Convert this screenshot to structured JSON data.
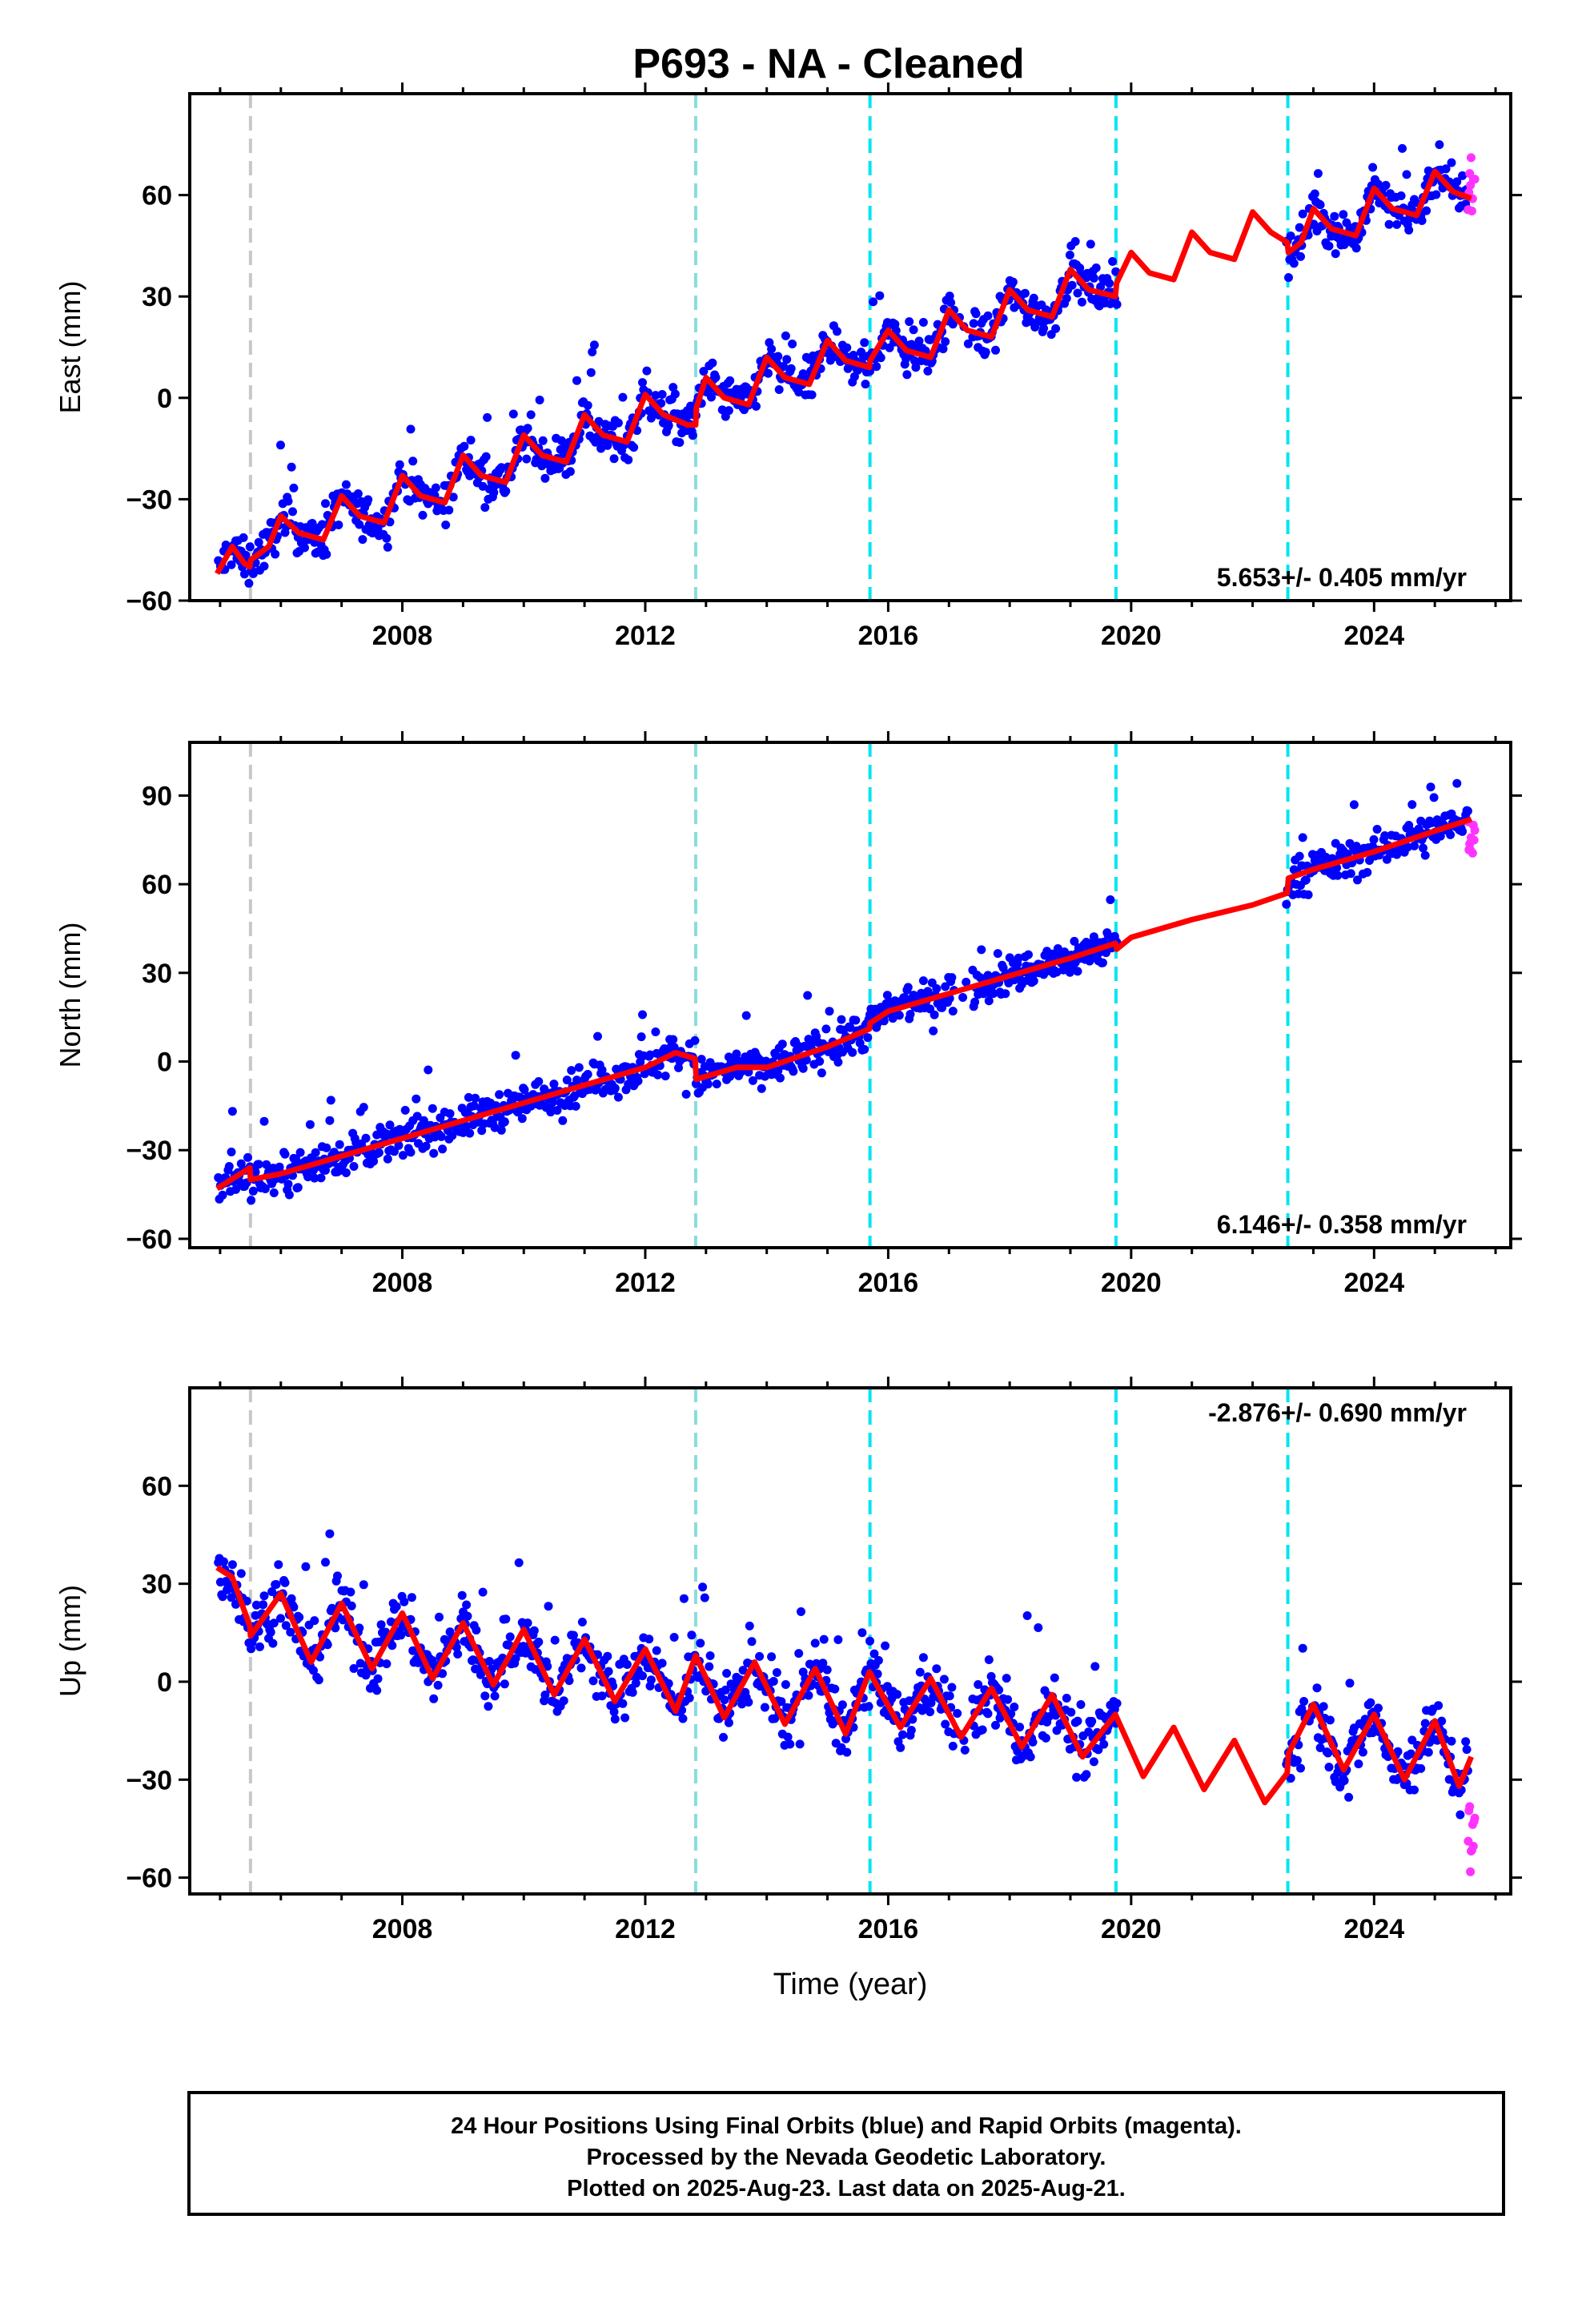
{
  "chart_data": {
    "type": "scatter",
    "title": "P693  - NA - Cleaned",
    "xlabel": "Time (year)",
    "xlim": [
      2004.5,
      2026.25
    ],
    "xticks": [
      2008,
      2012,
      2016,
      2020,
      2024
    ],
    "series_legend": {
      "final": {
        "name": "Final Orbits",
        "color": "#0000ff"
      },
      "rapid": {
        "name": "Rapid Orbits",
        "color": "#ff33ff"
      },
      "model": {
        "color": "#ff0000"
      }
    },
    "event_lines": [
      {
        "x": 2005.5,
        "color": "#c8c8c8"
      },
      {
        "x": 2012.83,
        "color": "#88dddd"
      },
      {
        "x": 2015.7,
        "color": "#00e5f0"
      },
      {
        "x": 2019.75,
        "color": "#00e5f0"
      },
      {
        "x": 2022.58,
        "color": "#00e5f0"
      }
    ],
    "panels": [
      {
        "name": "east",
        "ylabel": "East (mm)",
        "ylim": [
          -60,
          90
        ],
        "yticks": [
          -60,
          -30,
          0,
          30,
          60
        ],
        "rate_label": "5.653+/- 0.405 mm/yr",
        "rate_pos": "bottom-right",
        "model_points": [
          [
            2004.95,
            -52
          ],
          [
            2005.2,
            -44
          ],
          [
            2005.4,
            -49
          ],
          [
            2005.49,
            -50
          ],
          [
            2005.5,
            -48
          ],
          [
            2005.8,
            -44
          ],
          [
            2006.0,
            -35
          ],
          [
            2006.3,
            -40
          ],
          [
            2006.7,
            -42
          ],
          [
            2007.0,
            -29
          ],
          [
            2007.3,
            -35
          ],
          [
            2007.7,
            -37
          ],
          [
            2008.0,
            -23
          ],
          [
            2008.3,
            -29
          ],
          [
            2008.7,
            -31
          ],
          [
            2009.0,
            -17
          ],
          [
            2009.3,
            -23
          ],
          [
            2009.7,
            -25
          ],
          [
            2010.0,
            -11
          ],
          [
            2010.3,
            -17
          ],
          [
            2010.7,
            -19
          ],
          [
            2011.0,
            -5
          ],
          [
            2011.3,
            -11
          ],
          [
            2011.7,
            -13
          ],
          [
            2012.0,
            1
          ],
          [
            2012.3,
            -5
          ],
          [
            2012.7,
            -8
          ],
          [
            2012.83,
            -8
          ],
          [
            2012.84,
            -3
          ],
          [
            2013.0,
            6
          ],
          [
            2013.3,
            0
          ],
          [
            2013.7,
            -2
          ],
          [
            2014.0,
            12
          ],
          [
            2014.3,
            6
          ],
          [
            2014.7,
            4
          ],
          [
            2015.0,
            17
          ],
          [
            2015.3,
            11
          ],
          [
            2015.69,
            9
          ],
          [
            2015.7,
            11
          ],
          [
            2016.0,
            20
          ],
          [
            2016.3,
            14
          ],
          [
            2016.7,
            12
          ],
          [
            2017.0,
            26
          ],
          [
            2017.3,
            20
          ],
          [
            2017.7,
            18
          ],
          [
            2018.0,
            32
          ],
          [
            2018.3,
            26
          ],
          [
            2018.7,
            24
          ],
          [
            2019.0,
            38
          ],
          [
            2019.3,
            32
          ],
          [
            2019.74,
            30
          ],
          [
            2019.76,
            34
          ],
          [
            2020.0,
            43
          ],
          [
            2020.3,
            37
          ],
          [
            2020.7,
            35
          ],
          [
            2021.0,
            49
          ],
          [
            2021.3,
            43
          ],
          [
            2021.7,
            41
          ],
          [
            2022.0,
            55
          ],
          [
            2022.3,
            49
          ],
          [
            2022.57,
            46
          ],
          [
            2022.59,
            43
          ],
          [
            2022.8,
            46
          ],
          [
            2023.0,
            56
          ],
          [
            2023.3,
            50
          ],
          [
            2023.7,
            48
          ],
          [
            2024.0,
            62
          ],
          [
            2024.3,
            56
          ],
          [
            2024.7,
            54
          ],
          [
            2025.0,
            67
          ],
          [
            2025.3,
            61
          ],
          [
            2025.6,
            59
          ]
        ],
        "rapid_range": [
          55,
          72
        ]
      },
      {
        "name": "north",
        "ylabel": "North (mm)",
        "ylim": [
          -63,
          108
        ],
        "yticks": [
          -60,
          -30,
          0,
          30,
          60,
          90
        ],
        "rate_label": "6.146+/- 0.358 mm/yr",
        "rate_pos": "bottom-right",
        "model_points": [
          [
            2004.95,
            -43
          ],
          [
            2005.49,
            -36
          ],
          [
            2005.5,
            -40
          ],
          [
            2006.0,
            -38
          ],
          [
            2007.0,
            -32
          ],
          [
            2008.0,
            -26
          ],
          [
            2009.0,
            -20
          ],
          [
            2010.0,
            -14
          ],
          [
            2011.0,
            -8
          ],
          [
            2012.0,
            -2
          ],
          [
            2012.5,
            3
          ],
          [
            2012.82,
            1
          ],
          [
            2012.84,
            -6
          ],
          [
            2013.5,
            -2
          ],
          [
            2014.0,
            -2
          ],
          [
            2015.0,
            5
          ],
          [
            2015.69,
            11
          ],
          [
            2015.7,
            13
          ],
          [
            2016.0,
            17
          ],
          [
            2017.0,
            23
          ],
          [
            2018.0,
            29
          ],
          [
            2019.0,
            35
          ],
          [
            2019.74,
            40
          ],
          [
            2019.76,
            38
          ],
          [
            2020.0,
            42
          ],
          [
            2021.0,
            48
          ],
          [
            2022.0,
            53
          ],
          [
            2022.57,
            57
          ],
          [
            2022.59,
            62
          ],
          [
            2023.0,
            65
          ],
          [
            2024.0,
            71
          ],
          [
            2025.0,
            78
          ],
          [
            2025.6,
            82
          ]
        ],
        "rapid_range": [
          70,
          82
        ]
      },
      {
        "name": "up",
        "ylabel": "Up (mm)",
        "ylim": [
          -65,
          90
        ],
        "yticks": [
          -60,
          -30,
          0,
          30,
          60
        ],
        "rate_label": "-2.876+/- 0.690 mm/yr",
        "rate_pos": "top-right",
        "model_points": [
          [
            2004.95,
            35
          ],
          [
            2005.2,
            32
          ],
          [
            2005.49,
            17
          ],
          [
            2005.5,
            14
          ],
          [
            2006.0,
            27
          ],
          [
            2006.5,
            6
          ],
          [
            2007.0,
            24
          ],
          [
            2007.5,
            4
          ],
          [
            2008.0,
            21
          ],
          [
            2008.5,
            1
          ],
          [
            2009.0,
            18
          ],
          [
            2009.5,
            -1
          ],
          [
            2010.0,
            16
          ],
          [
            2010.5,
            -4
          ],
          [
            2011.0,
            13
          ],
          [
            2011.5,
            -6
          ],
          [
            2012.0,
            10
          ],
          [
            2012.5,
            -9
          ],
          [
            2012.83,
            8
          ],
          [
            2013.3,
            -11
          ],
          [
            2013.8,
            6
          ],
          [
            2014.3,
            -13
          ],
          [
            2014.8,
            4
          ],
          [
            2015.3,
            -16
          ],
          [
            2015.69,
            3
          ],
          [
            2016.2,
            -14
          ],
          [
            2016.7,
            1
          ],
          [
            2017.2,
            -17
          ],
          [
            2017.7,
            -2
          ],
          [
            2018.2,
            -20
          ],
          [
            2018.7,
            -4
          ],
          [
            2019.2,
            -23
          ],
          [
            2019.74,
            -10
          ],
          [
            2020.2,
            -29
          ],
          [
            2020.7,
            -14
          ],
          [
            2021.2,
            -33
          ],
          [
            2021.7,
            -18
          ],
          [
            2022.2,
            -37
          ],
          [
            2022.57,
            -28
          ],
          [
            2022.59,
            -22
          ],
          [
            2023.0,
            -7
          ],
          [
            2023.5,
            -27
          ],
          [
            2024.0,
            -10
          ],
          [
            2024.5,
            -30
          ],
          [
            2025.0,
            -12
          ],
          [
            2025.4,
            -32
          ],
          [
            2025.6,
            -23
          ]
        ],
        "rapid_range": [
          -60,
          -35
        ]
      }
    ]
  },
  "footer": {
    "line1": "24 Hour Positions Using Final Orbits (blue) and Rapid Orbits (magenta).",
    "line2": "Processed by the Nevada Geodetic Laboratory.",
    "line3": "Plotted on 2025-Aug-23. Last data on 2025-Aug-21."
  }
}
